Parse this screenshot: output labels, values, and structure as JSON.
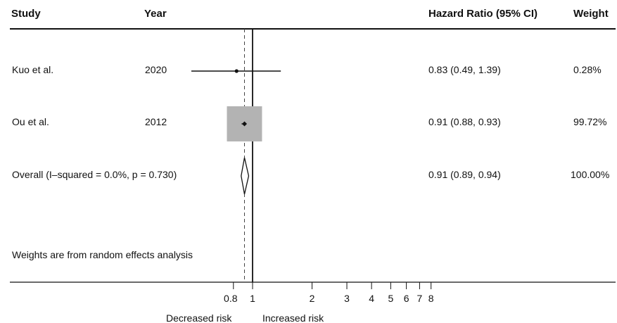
{
  "headers": {
    "study": "Study",
    "year": "Year",
    "effect": "Hazard Ratio (95% CI)",
    "weight": "Weight"
  },
  "rows": [
    {
      "study": "Kuo et al.",
      "year": "2020",
      "ci_text": "0.83 (0.49, 1.39)",
      "weight": "0.28%"
    },
    {
      "study": "Ou et  al.",
      "year": "2012",
      "ci_text": "0.91 (0.88, 0.93)",
      "weight": "99.72%"
    },
    {
      "study": "Overall  (I–squared = 0.0%, p = 0.730)",
      "year": "",
      "ci_text": "0.91 (0.89, 0.94)",
      "weight": "100.00%"
    }
  ],
  "footnote": "Weights are from random effects analysis",
  "axis_labels": {
    "left": "Decreased risk",
    "right": "Increased risk"
  },
  "chart_data": {
    "type": "forest",
    "scale": "log",
    "null_value": 1,
    "pooled_reference": 0.91,
    "xticks": [
      0.8,
      1,
      2,
      3,
      4,
      5,
      6,
      7,
      8
    ],
    "xtick_labels": [
      "0.8",
      "1",
      "2",
      "3",
      "4",
      "5",
      "6",
      "7",
      "8"
    ],
    "studies": [
      {
        "label": "Kuo et al.",
        "year": "2020",
        "estimate": 0.83,
        "lower": 0.49,
        "upper": 1.39,
        "weight": 0.28
      },
      {
        "label": "Ou et  al.",
        "year": "2012",
        "estimate": 0.91,
        "lower": 0.88,
        "upper": 0.93,
        "weight": 99.72
      }
    ],
    "overall": {
      "label": "Overall",
      "estimate": 0.91,
      "lower": 0.89,
      "upper": 0.94,
      "weight": 100.0,
      "i_squared": 0.0,
      "p": 0.73
    },
    "colors": {
      "box": "#b3b3b3",
      "line": "#111111"
    }
  }
}
